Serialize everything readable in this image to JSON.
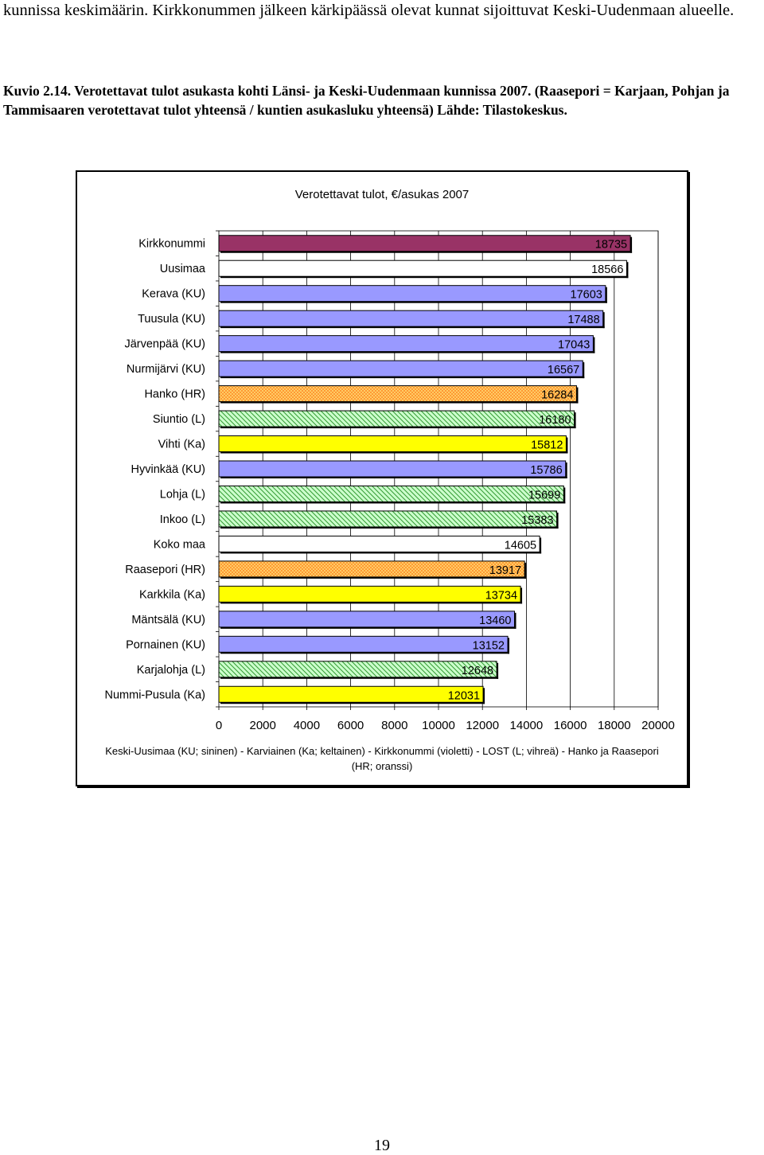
{
  "intro_text": "kunnissa keskimäärin. Kirkkonummen jälkeen kärkipäässä olevat kunnat sijoittuvat Keski-Uudenmaan alueelle.",
  "figure_caption": "Kuvio 2.14. Verotettavat tulot asukasta kohti Länsi- ja Keski-Uudenmaan kunnissa 2007. (Raasepori = Karjaan, Pohjan ja Tammisaaren verotettavat tulot yhteensä / kuntien asukasluku yhteensä) Lähde: Tilastokeskus.",
  "page_number": "19",
  "colors": {
    "violetti": "#993366",
    "sininen": "#9999ff",
    "oranssi": "#ffcc66",
    "vihrea": "#ccffcc",
    "keltainen": "#ffff00",
    "valkoinen": "#ffffff"
  },
  "chart_data": {
    "type": "bar",
    "orientation": "horizontal",
    "title": "Verotettavat tulot, €/asukas 2007",
    "xlim": [
      0,
      20000
    ],
    "x_ticks": [
      "0",
      "2000",
      "4000",
      "6000",
      "8000",
      "10000",
      "12000",
      "14000",
      "16000",
      "18000",
      "20000"
    ],
    "grid": "vertical",
    "categories": [
      "Kirkkonummi",
      "Uusimaa",
      "Kerava (KU)",
      "Tuusula (KU)",
      "Järvenpää (KU)",
      "Nurmijärvi (KU)",
      "Hanko (HR)",
      "Siuntio (L)",
      "Vihti (Ka)",
      "Hyvinkää (KU)",
      "Lohja (L)",
      "Inkoo (L)",
      "Koko maa",
      "Raasepori (HR)",
      "Karkkila (Ka)",
      "Mäntsälä (KU)",
      "Pornainen (KU)",
      "Karjalohja (L)",
      "Nummi-Pusula (Ka)"
    ],
    "values": [
      18735,
      18566,
      17603,
      17488,
      17043,
      16567,
      16284,
      16180,
      15812,
      15786,
      15699,
      15383,
      14605,
      13917,
      13734,
      13460,
      13152,
      12648,
      12031
    ],
    "bar_colors": [
      "violetti",
      "valkoinen",
      "sininen",
      "sininen",
      "sininen",
      "sininen",
      "oranssi",
      "vihrea",
      "keltainen",
      "sininen",
      "vihrea",
      "vihrea",
      "valkoinen",
      "oranssi",
      "keltainen",
      "sininen",
      "sininen",
      "vihrea",
      "keltainen"
    ],
    "legend_note": "Keski-Uusimaa (KU; sininen) - Karviainen (Ka; keltainen) - Kirkkonummi (violetti) - LOST (L; vihreä) - Hanko ja Raasepori (HR; oranssi)"
  }
}
